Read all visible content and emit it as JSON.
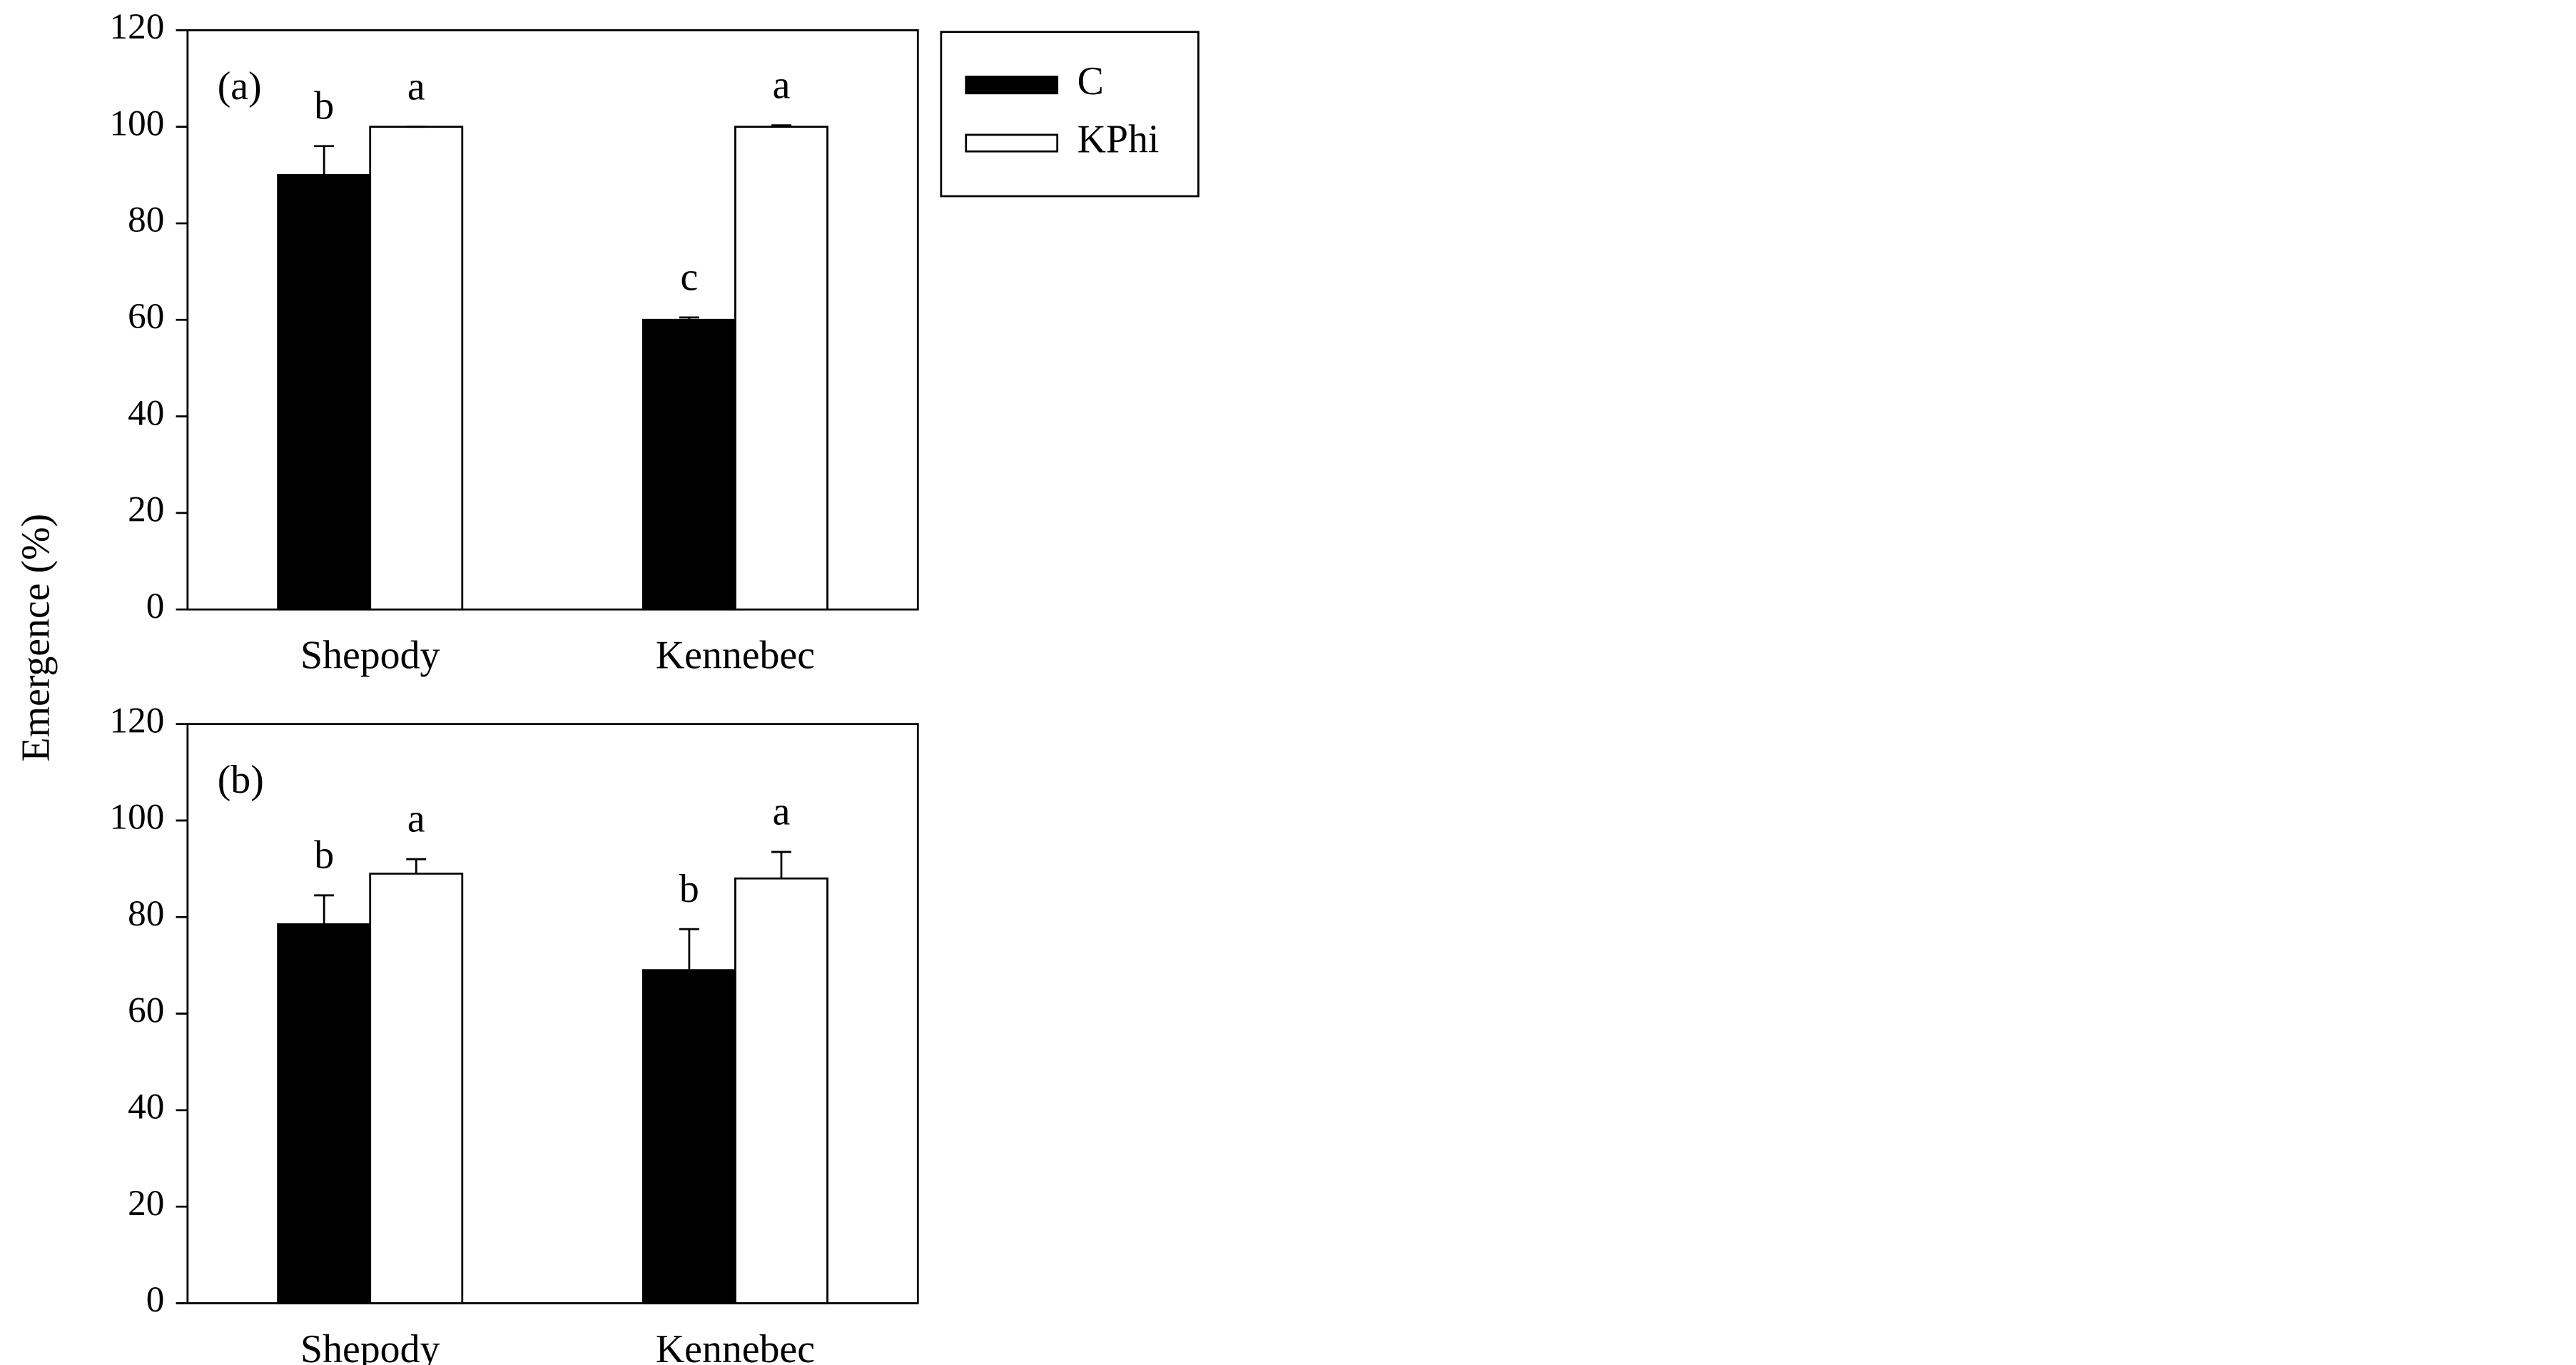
{
  "chart_data": [
    {
      "type": "bar",
      "panel_label": "(a)",
      "ylabel": "Emergence (%)",
      "categories": [
        "Shepody",
        "Kennebec"
      ],
      "ylim": [
        0,
        120
      ],
      "yticks": [
        0,
        20,
        40,
        60,
        80,
        100,
        120
      ],
      "legend": "outside-right",
      "series": [
        {
          "name": "C",
          "color": "#000000",
          "values": [
            90,
            60
          ],
          "errors": [
            6,
            0.5
          ],
          "letters": [
            "b",
            "c"
          ]
        },
        {
          "name": "KPhi",
          "color": "#ffffff",
          "values": [
            100,
            100
          ],
          "errors": [
            0,
            0.3
          ],
          "letters": [
            "a",
            "a"
          ]
        }
      ]
    },
    {
      "type": "bar",
      "panel_label": "(b)",
      "categories": [
        "Shepody",
        "Kennebec"
      ],
      "ylim": [
        0,
        120
      ],
      "yticks": [
        0,
        20,
        40,
        60,
        80,
        100,
        120
      ],
      "series": [
        {
          "color": "#000000",
          "values": [
            78.5,
            69
          ],
          "errors": [
            6,
            8.5
          ],
          "letters": [
            "b",
            "b"
          ]
        },
        {
          "color": "#ffffff",
          "values": [
            89,
            88
          ],
          "errors": [
            3,
            5.5
          ],
          "letters": [
            "a",
            "a"
          ]
        }
      ]
    }
  ]
}
